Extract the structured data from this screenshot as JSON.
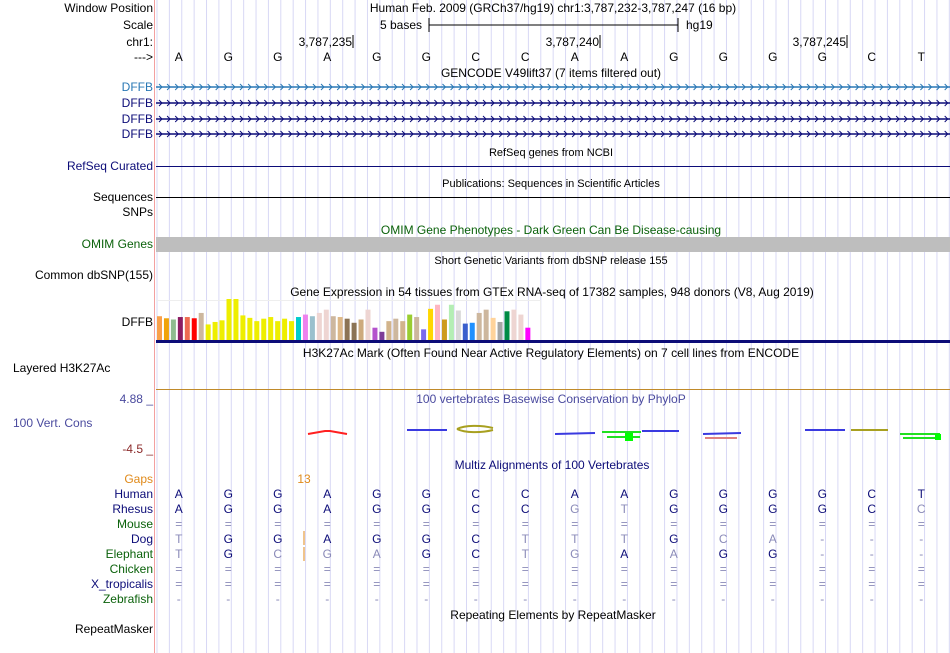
{
  "header": {
    "window_position_label": "Window Position",
    "window_position_value": "Human Feb. 2009 (GRCh37/hg19)   chr1:3,787,232-3,787,247 (16 bp)",
    "scale_label": "Scale",
    "scale_text": "5 bases",
    "scale_assembly": "hg19",
    "chrom_label": "chr1:",
    "strand_label": "--->",
    "ticks": [
      "3,787,235",
      "3,787,240",
      "3,787,245"
    ]
  },
  "sequence": [
    "A",
    "G",
    "G",
    "A",
    "G",
    "G",
    "C",
    "C",
    "A",
    "A",
    "G",
    "G",
    "G",
    "G",
    "C",
    "T"
  ],
  "colors": {
    "gencode_highlight": "#2a78b5",
    "gene_dark": "#0c0c78",
    "omim_green": "#0b620b",
    "omim_bar": "#bebebe",
    "cons_label": "#4a4a9e",
    "cons_neg": "#8b2a2a",
    "gaps_orange": "#e08a1a",
    "grid": "#d8d8f5",
    "h3k27_line": "#c08a2a"
  },
  "tracks": {
    "gencode": {
      "title": "GENCODE V49lift37 (7 items filtered out)",
      "items": [
        "DFFB",
        "DFFB",
        "DFFB",
        "DFFB"
      ]
    },
    "refseq": {
      "title": "RefSeq genes from NCBI",
      "label": "RefSeq Curated"
    },
    "publications": {
      "title": "Publications: Sequences in Scientific Articles",
      "label": "Sequences"
    },
    "snps": {
      "label": "SNPs"
    },
    "omim": {
      "title": "OMIM Gene Phenotypes - Dark Green Can Be Disease-causing",
      "label": "OMIM Genes"
    },
    "dbsnp": {
      "title": "Short Genetic Variants from dbSNP release 155",
      "label": "Common dbSNP(155)"
    },
    "gtex": {
      "title": "Gene Expression in 54 tissues from GTEx RNA-seq of 17382 samples, 948 donors (V8, Aug 2019)",
      "label": "DFFB",
      "bar_heights_rel": [
        0.58,
        0.53,
        0.5,
        0.56,
        0.56,
        0.53,
        0.66,
        0.38,
        0.44,
        0.48,
        1.0,
        1.0,
        0.6,
        0.54,
        0.46,
        0.52,
        0.56,
        0.46,
        0.52,
        0.46,
        0.56,
        0.62,
        0.58,
        0.66,
        0.74,
        0.58,
        0.56,
        0.52,
        0.42,
        0.5,
        0.74,
        0.3,
        0.2,
        0.46,
        0.52,
        0.46,
        0.62,
        0.56,
        0.26,
        0.76,
        0.86,
        0.5,
        0.86,
        0.72,
        0.4,
        0.42,
        0.66,
        0.74,
        0.54,
        0.44,
        0.7,
        0.74,
        0.62,
        0.3
      ],
      "bar_colors": [
        "#f9a04a",
        "#f0a30a",
        "#8fbc8f",
        "#8b1c62",
        "#ee6a50",
        "#ff0000",
        "#cdb79e",
        "#eeee00",
        "#eeee00",
        "#eeee00",
        "#eeee00",
        "#eeee00",
        "#eeee00",
        "#eeee00",
        "#eeee00",
        "#eeee00",
        "#eeee00",
        "#eeee00",
        "#eeee00",
        "#eeee00",
        "#00cdcd",
        "#ee82ee",
        "#9ac0cd",
        "#eed5d2",
        "#eed5d2",
        "#cdb79e",
        "#deb887",
        "#8b7355",
        "#8b7355",
        "#cdaa7d",
        "#eed5d2",
        "#b452cd",
        "#7d3c98",
        "#d2b48c",
        "#cdb79e",
        "#d2b48c",
        "#9acd32",
        "#cdb79e",
        "#7b68ee",
        "#ffd700",
        "#ffb6c1",
        "#cd9b1d",
        "#b4eeb4",
        "#d9d9d9",
        "#3a5fcd",
        "#1e90ff",
        "#cdb79e",
        "#cdb79e",
        "#ffd39b",
        "#a6a6a6",
        "#008b45",
        "#eed5d2",
        "#eed5d2",
        "#ff00ff"
      ]
    },
    "h3k27ac": {
      "title": "H3K27Ac Mark (Often Found Near Active Regulatory Elements) on 7 cell lines from ENCODE",
      "label": "Layered H3K27Ac"
    },
    "conservation": {
      "title": "100 vertebrates Basewise Conservation by PhyloP",
      "label": "100 Vert. Cons",
      "max_label": "4.88 _",
      "min_label": "-4.5 _"
    },
    "multiz": {
      "title": "Multiz Alignments of 100 Vertebrates",
      "gaps_label": "Gaps",
      "gap_count": "13",
      "species": [
        {
          "name": "Human",
          "color": "#0c0c78",
          "bases": [
            "A",
            "G",
            "G",
            "A",
            "G",
            "G",
            "C",
            "C",
            "A",
            "A",
            "G",
            "G",
            "G",
            "G",
            "C",
            "T"
          ]
        },
        {
          "name": "Rhesus",
          "color": "#0c0c78",
          "bases": [
            "A",
            "G",
            "G",
            "A",
            "G",
            "G",
            "C",
            "C",
            "G",
            "T",
            "G",
            "G",
            "G",
            "G",
            "C",
            "C"
          ]
        },
        {
          "name": "Mouse",
          "color": "#0b620b",
          "bases": [
            "=",
            "=",
            "=",
            "=",
            "=",
            "=",
            "=",
            "=",
            "=",
            "=",
            "=",
            "=",
            "=",
            "=",
            "=",
            "="
          ]
        },
        {
          "name": "Dog",
          "color": "#0c0c78",
          "bases": [
            "T",
            "G",
            "G",
            "A",
            "G",
            "G",
            "C",
            "T",
            "T",
            "T",
            "G",
            "C",
            "A",
            "-",
            "-",
            "-"
          ]
        },
        {
          "name": "Elephant",
          "color": "#0b620b",
          "bases": [
            "T",
            "G",
            "C",
            "G",
            "A",
            "G",
            "C",
            "T",
            "G",
            "A",
            "A",
            "G",
            "G",
            "-",
            "-",
            "-"
          ]
        },
        {
          "name": "Chicken",
          "color": "#0b620b",
          "bases": [
            "=",
            "=",
            "=",
            "=",
            "=",
            "=",
            "=",
            "=",
            "=",
            "=",
            "=",
            "=",
            "=",
            "=",
            "=",
            "="
          ]
        },
        {
          "name": "X_tropicalis",
          "color": "#0c0c78",
          "bases": [
            "=",
            "=",
            "=",
            "=",
            "=",
            "=",
            "=",
            "=",
            "=",
            "=",
            "=",
            "=",
            "=",
            "=",
            "=",
            "="
          ]
        },
        {
          "name": "Zebrafish",
          "color": "#0b620b",
          "bases": [
            "-",
            "-",
            "-",
            "-",
            "-",
            "-",
            "-",
            "-",
            "-",
            "-",
            "-",
            "-",
            "-",
            "-",
            "-",
            "-"
          ]
        }
      ],
      "mismatch": [
        [
          0,
          0,
          0,
          0,
          0,
          0,
          0,
          0,
          0,
          0,
          0,
          0,
          0,
          0,
          0,
          0
        ],
        [
          0,
          0,
          0,
          0,
          0,
          0,
          0,
          0,
          1,
          1,
          0,
          0,
          0,
          0,
          0,
          1
        ],
        [
          1,
          1,
          1,
          1,
          1,
          1,
          1,
          1,
          1,
          1,
          1,
          1,
          1,
          1,
          1,
          1
        ],
        [
          1,
          0,
          0,
          0,
          0,
          0,
          0,
          1,
          1,
          1,
          0,
          1,
          1,
          1,
          1,
          1
        ],
        [
          1,
          0,
          1,
          1,
          1,
          0,
          0,
          1,
          1,
          0,
          1,
          0,
          0,
          1,
          1,
          1
        ],
        [
          1,
          1,
          1,
          1,
          1,
          1,
          1,
          1,
          1,
          1,
          1,
          1,
          1,
          1,
          1,
          1
        ],
        [
          1,
          1,
          1,
          1,
          1,
          1,
          1,
          1,
          1,
          1,
          1,
          1,
          1,
          1,
          1,
          1
        ],
        [
          1,
          1,
          1,
          1,
          1,
          1,
          1,
          1,
          1,
          1,
          1,
          1,
          1,
          1,
          1,
          1
        ]
      ]
    },
    "repeatmasker": {
      "title": "Repeating Elements by RepeatMasker",
      "label": "RepeatMasker"
    }
  }
}
